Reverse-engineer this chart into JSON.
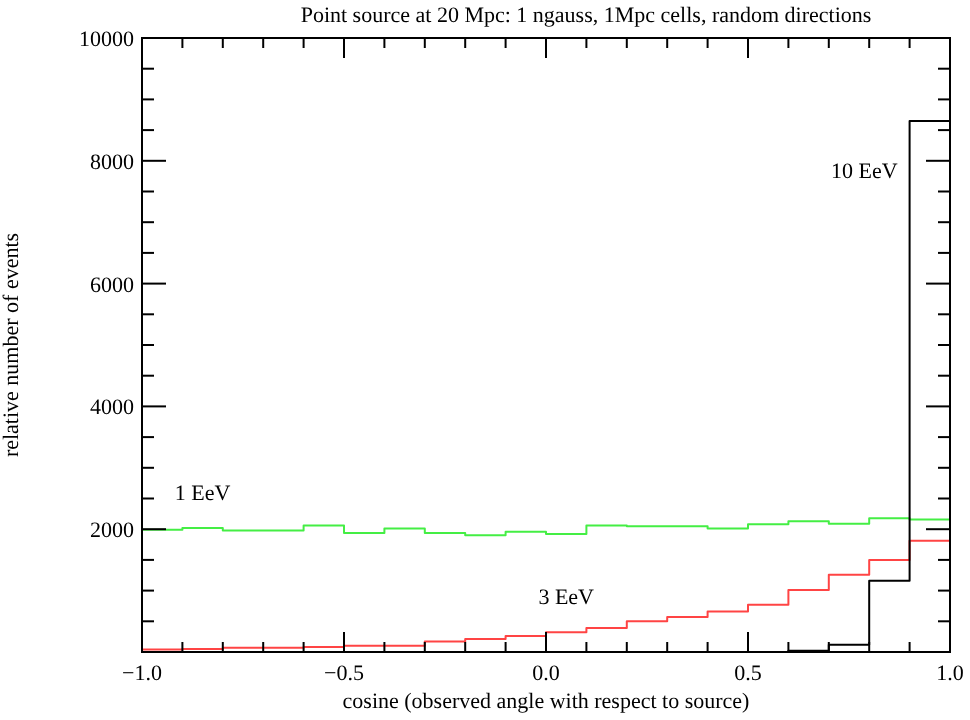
{
  "chart_data": {
    "type": "histogram",
    "title": "Point source at 20 Mpc: 1 ngauss, 1Mpc cells, random directions",
    "xlabel": "cosine (observed angle with respect to source)",
    "ylabel": "relative number of events",
    "bins": [
      -1,
      -0.9,
      -0.8,
      -0.7,
      -0.6,
      -0.5,
      -0.4,
      -0.3,
      -0.2,
      -0.1,
      0,
      0.1,
      0.2,
      0.3,
      0.4,
      0.5,
      0.6,
      0.7,
      0.8,
      0.9,
      1
    ],
    "series": [
      {
        "name": "1 EeV",
        "color": "#44ee44",
        "values": [
          1990,
          2020,
          1980,
          1980,
          2060,
          1940,
          2010,
          1940,
          1900,
          1960,
          1920,
          2060,
          2050,
          2050,
          2010,
          2080,
          2130,
          2090,
          2180,
          2160
        ]
      },
      {
        "name": "3 EeV",
        "color": "#ff4444",
        "values": [
          40,
          50,
          70,
          70,
          80,
          100,
          100,
          170,
          210,
          260,
          320,
          390,
          500,
          570,
          660,
          770,
          1010,
          1260,
          1500,
          1810
        ]
      },
      {
        "name": "10 EeV",
        "color": "#000000",
        "values": [
          0,
          0,
          0,
          0,
          0,
          0,
          0,
          0,
          0,
          0,
          0,
          0,
          0,
          0,
          0,
          0,
          20,
          120,
          1160,
          8650
        ]
      }
    ],
    "xlim": [
      -1,
      1
    ],
    "ylim": [
      0,
      10000
    ],
    "xticks": [
      {
        "value": -1,
        "label": "−1.0"
      },
      {
        "value": -0.9,
        "label": null
      },
      {
        "value": -0.8,
        "label": null
      },
      {
        "value": -0.7,
        "label": null
      },
      {
        "value": -0.6,
        "label": null
      },
      {
        "value": -0.5,
        "label": "−0.5"
      },
      {
        "value": -0.4,
        "label": null
      },
      {
        "value": -0.3,
        "label": null
      },
      {
        "value": -0.2,
        "label": null
      },
      {
        "value": -0.1,
        "label": null
      },
      {
        "value": 0,
        "label": "0.0"
      },
      {
        "value": 0.1,
        "label": null
      },
      {
        "value": 0.2,
        "label": null
      },
      {
        "value": 0.3,
        "label": null
      },
      {
        "value": 0.4,
        "label": null
      },
      {
        "value": 0.5,
        "label": "0.5"
      },
      {
        "value": 0.6,
        "label": null
      },
      {
        "value": 0.7,
        "label": null
      },
      {
        "value": 0.8,
        "label": null
      },
      {
        "value": 0.9,
        "label": null
      },
      {
        "value": 1,
        "label": "1.0"
      }
    ],
    "yticks": [
      {
        "value": 500,
        "label": null
      },
      {
        "value": 1000,
        "label": null
      },
      {
        "value": 1500,
        "label": null
      },
      2000,
      {
        "value": 2500,
        "label": null
      },
      {
        "value": 3000,
        "label": null
      },
      {
        "value": 3500,
        "label": null
      },
      4000,
      {
        "value": 4500,
        "label": null
      },
      {
        "value": 5000,
        "label": null
      },
      {
        "value": 5500,
        "label": null
      },
      6000,
      {
        "value": 6500,
        "label": null
      },
      {
        "value": 7000,
        "label": null
      },
      {
        "value": 7500,
        "label": null
      },
      8000,
      {
        "value": 8500,
        "label": null
      },
      {
        "value": 9000,
        "label": null
      },
      {
        "value": 9500,
        "label": null
      },
      10000
    ]
  }
}
